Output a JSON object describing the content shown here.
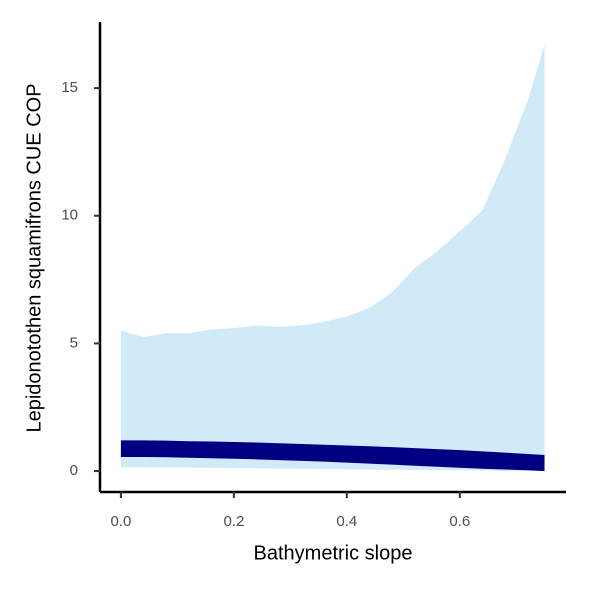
{
  "chart_data": {
    "type": "ribbon",
    "x_label": "Bathymetric slope",
    "y_label": "Lepidonotothen squamifrons  CUE COP",
    "x": [
      0,
      0.04,
      0.08,
      0.12,
      0.16,
      0.2,
      0.24,
      0.28,
      0.32,
      0.36,
      0.4,
      0.44,
      0.48,
      0.52,
      0.56,
      0.6,
      0.64,
      0.68,
      0.72,
      0.75
    ],
    "ribbons": [
      {
        "color": "#d0eaf7",
        "upper": [
          5.5,
          5.25,
          5.4,
          5.4,
          5.55,
          5.6,
          5.7,
          5.65,
          5.7,
          5.85,
          6.05,
          6.4,
          7.0,
          7.95,
          8.6,
          9.4,
          10.2,
          12.2,
          14.5,
          16.7
        ],
        "lower": [
          0.15,
          0.15,
          0.14,
          0.14,
          0.13,
          0.12,
          0.11,
          0.1,
          0.09,
          0.08,
          0.07,
          0.06,
          0.05,
          0.04,
          0.03,
          0.03,
          0.02,
          0.01,
          0.01,
          0.0
        ]
      },
      {
        "color": "#000080",
        "upper": [
          1.2,
          1.2,
          1.19,
          1.17,
          1.16,
          1.14,
          1.12,
          1.09,
          1.06,
          1.03,
          1.0,
          0.97,
          0.94,
          0.9,
          0.86,
          0.82,
          0.77,
          0.72,
          0.67,
          0.63
        ],
        "lower": [
          0.55,
          0.55,
          0.54,
          0.52,
          0.5,
          0.48,
          0.46,
          0.43,
          0.4,
          0.37,
          0.33,
          0.29,
          0.25,
          0.21,
          0.17,
          0.13,
          0.09,
          0.06,
          0.03,
          0.0
        ]
      }
    ],
    "xlim": [
      -0.037,
      0.788
    ],
    "ylim": [
      -0.82,
      17.59
    ],
    "xticks": [
      {
        "value": 0,
        "label": "0.0"
      },
      0.2,
      0.4,
      0.6
    ],
    "yticks": [
      0,
      5,
      10,
      15
    ]
  }
}
